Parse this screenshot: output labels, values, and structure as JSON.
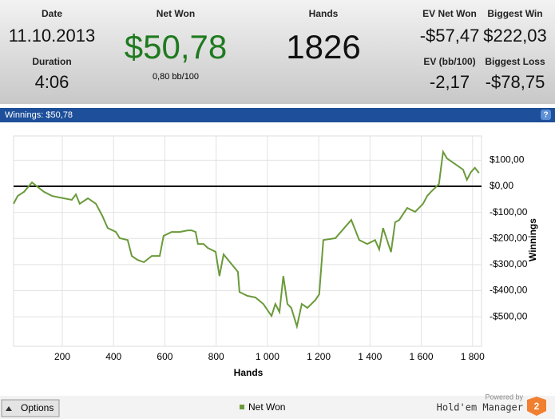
{
  "header": {
    "date_label": "Date",
    "date": "11.10.2013",
    "duration_label": "Duration",
    "duration": "4:06",
    "net_won_label": "Net Won",
    "net_won": "$50,78",
    "bb100": "0,80 bb/100",
    "hands_label": "Hands",
    "hands": "1826",
    "ev_net_won_label": "EV Net Won",
    "ev_net_won": "-$57,47",
    "biggest_win_label": "Biggest Win",
    "biggest_win": "$222,03",
    "ev_bb100_label": "EV (bb/100)",
    "ev_bb100": "-2,17",
    "biggest_loss_label": "Biggest Loss",
    "biggest_loss": "-$78,75"
  },
  "panel_title": "Winnings: $50,78",
  "help": "?",
  "chart_data": {
    "type": "line",
    "xlabel": "Hands",
    "ylabel": "Winnings",
    "grid": true,
    "legend": "bottom",
    "xlim": [
      10,
      1835
    ],
    "ylim": [
      -613,
      193
    ],
    "xticks": [
      200,
      400,
      600,
      800,
      {
        "value": 1000,
        "label": "1 000"
      },
      {
        "value": 1200,
        "label": "1 200"
      },
      {
        "value": 1400,
        "label": "1 400"
      },
      {
        "value": 1600,
        "label": "1 600"
      },
      {
        "value": 1800,
        "label": "1 800"
      }
    ],
    "yticks": [
      {
        "value": 100,
        "label": "$100,00"
      },
      {
        "value": 0,
        "label": "$0,00"
      },
      {
        "value": -100,
        "label": "-$100,00"
      },
      {
        "value": -200,
        "label": "-$200,00"
      },
      {
        "value": -300,
        "label": "-$300,00"
      },
      {
        "value": -400,
        "label": "-$400,00"
      },
      {
        "value": -500,
        "label": "-$500,00"
      }
    ],
    "x": [
      10,
      26,
      51,
      82,
      97,
      128,
      160,
      206,
      237,
      253,
      268,
      300,
      331,
      356,
      377,
      409,
      424,
      455,
      471,
      493,
      518,
      549,
      580,
      595,
      626,
      658,
      689,
      704,
      720,
      729,
      751,
      767,
      798,
      813,
      829,
      860,
      885,
      891,
      922,
      953,
      984,
      1016,
      1031,
      1047,
      1062,
      1078,
      1093,
      1115,
      1134,
      1156,
      1187,
      1202,
      1218,
      1265,
      1327,
      1358,
      1389,
      1420,
      1436,
      1451,
      1482,
      1498,
      1514,
      1545,
      1576,
      1607,
      1623,
      1638,
      1654,
      1669,
      1685,
      1700,
      1731,
      1763,
      1778,
      1794,
      1809,
      1825
    ],
    "series": [
      {
        "name": "Net Won",
        "color": "#6a9a3a",
        "values": [
          -67,
          -37,
          -21,
          15,
          3,
          -21,
          -37,
          -46,
          -52,
          -31,
          -67,
          -46,
          -67,
          -113,
          -160,
          -175,
          -199,
          -206,
          -267,
          -282,
          -291,
          -267,
          -267,
          -190,
          -175,
          -175,
          -169,
          -169,
          -175,
          -221,
          -221,
          -236,
          -251,
          -344,
          -261,
          -298,
          -328,
          -405,
          -420,
          -426,
          -451,
          -497,
          -451,
          -482,
          -344,
          -451,
          -466,
          -537,
          -451,
          -466,
          -436,
          -414,
          -206,
          -199,
          -129,
          -206,
          -221,
          -206,
          -242,
          -160,
          -252,
          -138,
          -129,
          -83,
          -98,
          -67,
          -37,
          -21,
          -6,
          9,
          132,
          107,
          86,
          64,
          25,
          55,
          71,
          51
        ]
      }
    ]
  },
  "footer": {
    "options": "Options",
    "powered_by": "Powered by",
    "brand": "Hold'em Manager",
    "brand_badge": "2"
  }
}
